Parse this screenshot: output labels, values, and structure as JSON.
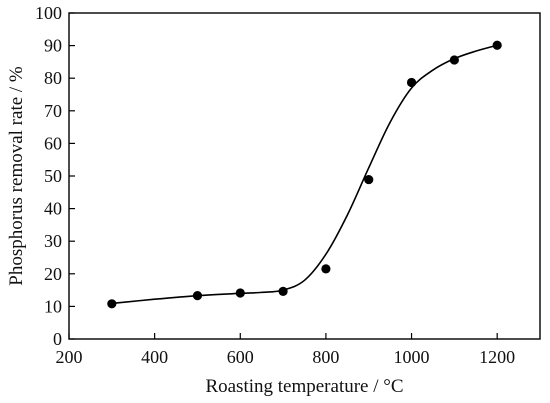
{
  "chart_data": {
    "type": "scatter",
    "title": "",
    "xlabel": "Roasting temperature / °C",
    "ylabel": "Phosphorus removal rate / %",
    "xlim": [
      200,
      1300
    ],
    "ylim": [
      0,
      100
    ],
    "x_ticks": [
      200,
      400,
      600,
      800,
      1000,
      1200
    ],
    "y_ticks": [
      0,
      10,
      20,
      30,
      40,
      50,
      60,
      70,
      80,
      90,
      100
    ],
    "grid": false,
    "legend": "none",
    "series": [
      {
        "x": [
          300,
          500,
          600,
          700,
          800,
          900,
          1000,
          1100,
          1200
        ],
        "y": [
          10.8,
          13.3,
          14.1,
          14.6,
          21.5,
          48.9,
          78.7,
          85.6,
          90.1
        ]
      }
    ],
    "fit_curve": {
      "x": [
        300,
        400,
        500,
        600,
        650,
        700,
        750,
        800,
        850,
        900,
        950,
        1000,
        1050,
        1100,
        1150,
        1200
      ],
      "y": [
        10.9,
        12.2,
        13.3,
        14.0,
        14.3,
        15.0,
        18.0,
        26.0,
        38.0,
        52.5,
        66.5,
        77.0,
        82.5,
        86.0,
        88.3,
        90.1
      ]
    },
    "colors": {
      "marker": "#000000",
      "line": "#000000",
      "axis": "#000000"
    }
  }
}
